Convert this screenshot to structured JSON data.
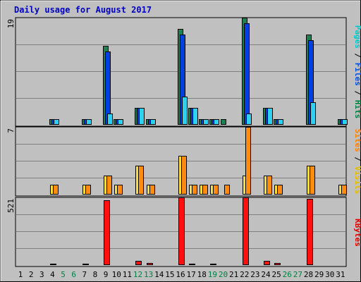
{
  "chart_data": {
    "type": "bar",
    "title": "Daily usage for August 2017",
    "days": [
      "1",
      "2",
      "3",
      "4",
      "5",
      "6",
      "7",
      "8",
      "9",
      "10",
      "11",
      "12",
      "13",
      "14",
      "15",
      "16",
      "17",
      "18",
      "19",
      "20",
      "21",
      "22",
      "23",
      "24",
      "25",
      "26",
      "27",
      "28",
      "29",
      "30",
      "31"
    ],
    "weekend_days": [
      "5",
      "6",
      "12",
      "13",
      "19",
      "20",
      "26",
      "27"
    ],
    "panels": [
      {
        "name": "hits-files-pages",
        "ymax": 19,
        "ymax_label": "19",
        "legend": [
          {
            "text": "Pages",
            "color": "#00c8c8"
          },
          {
            "text": " / ",
            "color": "#000000"
          },
          {
            "text": "Files",
            "color": "#0050e0"
          },
          {
            "text": " / ",
            "color": "#000000"
          },
          {
            "text": "Hits",
            "color": "#008040"
          }
        ],
        "series": [
          {
            "key": "hits",
            "color": "#1e8050",
            "values": [
              0,
              0,
              0,
              1,
              0,
              0,
              1,
              0,
              14,
              1,
              0,
              3,
              1,
              0,
              0,
              17,
              3,
              1,
              1,
              1,
              0,
              19,
              0,
              3,
              1,
              0,
              0,
              16,
              0,
              0,
              1
            ]
          },
          {
            "key": "files",
            "color": "#0040e0",
            "values": [
              0,
              0,
              0,
              1,
              0,
              0,
              1,
              0,
              13,
              1,
              0,
              3,
              1,
              0,
              0,
              16,
              3,
              1,
              1,
              0,
              0,
              18,
              0,
              3,
              1,
              0,
              0,
              15,
              0,
              0,
              1
            ]
          },
          {
            "key": "pages",
            "color": "#30d0f0",
            "values": [
              0,
              0,
              0,
              1,
              0,
              0,
              1,
              0,
              2,
              1,
              0,
              3,
              1,
              0,
              0,
              5,
              3,
              1,
              1,
              0,
              0,
              2,
              0,
              3,
              1,
              0,
              0,
              4,
              0,
              0,
              1
            ]
          }
        ]
      },
      {
        "name": "visits-sites",
        "ymax": 7,
        "ymax_label": "7",
        "legend": [
          {
            "text": "Sites",
            "color": "#ff8000"
          },
          {
            "text": " / ",
            "color": "#000000"
          },
          {
            "text": "Visits",
            "color": "#e0c000"
          }
        ],
        "series": [
          {
            "key": "visits",
            "color": "#ffe040",
            "values": [
              0,
              0,
              0,
              1,
              0,
              0,
              1,
              0,
              2,
              1,
              0,
              3,
              1,
              0,
              0,
              4,
              1,
              1,
              1,
              0,
              0,
              2,
              0,
              2,
              1,
              0,
              0,
              3,
              0,
              0,
              1
            ]
          },
          {
            "key": "sites",
            "color": "#ff8c10",
            "values": [
              0,
              0,
              0,
              1,
              0,
              0,
              1,
              0,
              2,
              1,
              0,
              3,
              1,
              0,
              0,
              4,
              1,
              1,
              1,
              1,
              0,
              7,
              0,
              2,
              1,
              0,
              0,
              3,
              0,
              0,
              1
            ]
          }
        ]
      },
      {
        "name": "kbytes",
        "ymax": 521,
        "ymax_label": "521",
        "legend": [
          {
            "text": "KBytes",
            "color": "#e00000"
          }
        ],
        "series": [
          {
            "key": "kbytes",
            "color": "#ff1010",
            "values": [
              0,
              0,
              0,
              12,
              0,
              0,
              12,
              0,
              500,
              0,
              0,
              35,
              18,
              0,
              0,
              521,
              12,
              0,
              12,
              0,
              0,
              521,
              0,
              30,
              15,
              0,
              0,
              510,
              0,
              0,
              0
            ]
          }
        ]
      }
    ]
  },
  "colors": {
    "background": "#c0c0c0",
    "title": "#0000c0",
    "grid": "#808080",
    "weekday_label": "#000000",
    "weekend_label": "#008040",
    "bar_outline": "#000000"
  }
}
